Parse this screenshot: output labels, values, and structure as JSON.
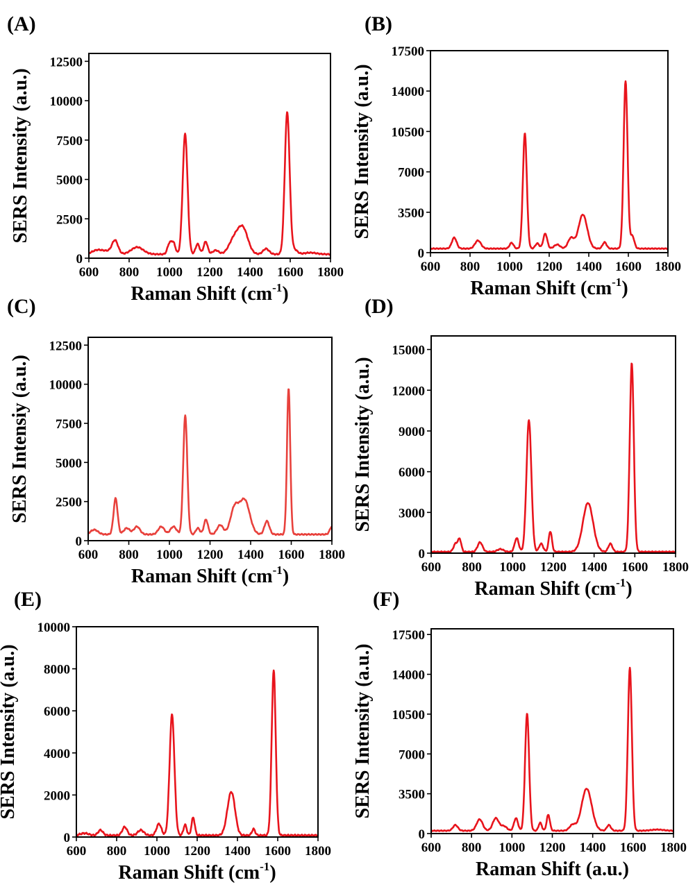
{
  "chart_data": [
    {
      "type": "line",
      "panel_label": "(A)",
      "xlabel": "Raman Shift",
      "xlabel_unit": "cm",
      "xlabel_unit_sup": "-1",
      "ylabel": "SERS Intensity (a.u.)",
      "xlim": [
        600,
        1800
      ],
      "ylim": [
        0,
        13000
      ],
      "xticks": [
        "600",
        "800",
        "1000",
        "1200",
        "1400",
        "1600",
        "1800"
      ],
      "yticks": [
        "0",
        "2500",
        "5000",
        "7500",
        "10000",
        "12500"
      ],
      "series": [
        {
          "color": "#e8141c",
          "baseline": 250,
          "peaks": [
            [
              640,
              250,
              25
            ],
            [
              690,
              180,
              25
            ],
            [
              730,
              850,
              15
            ],
            [
              840,
              450,
              30
            ],
            [
              1000,
              650,
              10
            ],
            [
              1020,
              700,
              10
            ],
            [
              1078,
              7650,
              12
            ],
            [
              1140,
              650,
              10
            ],
            [
              1180,
              800,
              10
            ],
            [
              1230,
              250,
              15
            ],
            [
              1320,
              900,
              25
            ],
            [
              1365,
              1600,
              25
            ],
            [
              1480,
              350,
              15
            ],
            [
              1585,
              9000,
              12
            ],
            [
              1620,
              300,
              15
            ],
            [
              1700,
              100,
              30
            ]
          ]
        }
      ]
    },
    {
      "type": "line",
      "panel_label": "(B)",
      "xlabel": "Raman Shift",
      "xlabel_unit": "cm",
      "xlabel_unit_sup": "-1",
      "ylabel": "SERS Intensity (a.u.)",
      "xlim": [
        600,
        1800
      ],
      "ylim": [
        0,
        17500
      ],
      "xticks": [
        "600",
        "800",
        "1000",
        "1200",
        "1400",
        "1600",
        "1800"
      ],
      "yticks": [
        "0",
        "3500",
        "7000",
        "10500",
        "14000",
        "17500"
      ],
      "series": [
        {
          "color": "#e8141c",
          "baseline": 350,
          "peaks": [
            [
              720,
              950,
              12
            ],
            [
              840,
              700,
              15
            ],
            [
              1010,
              500,
              10
            ],
            [
              1077,
              10000,
              10
            ],
            [
              1140,
              450,
              10
            ],
            [
              1180,
              1300,
              10
            ],
            [
              1240,
              350,
              15
            ],
            [
              1310,
              900,
              15
            ],
            [
              1370,
              2950,
              22
            ],
            [
              1480,
              550,
              10
            ],
            [
              1586,
              14500,
              10
            ],
            [
              1620,
              1100,
              10
            ]
          ]
        }
      ]
    },
    {
      "type": "line",
      "panel_label": "(C)",
      "xlabel": "Raman Shift",
      "xlabel_unit": "cm",
      "xlabel_unit_sup": "-1",
      "ylabel": "SERS Intensiy (a.u.)",
      "xlim": [
        600,
        1800
      ],
      "ylim": [
        0,
        13000
      ],
      "xticks": [
        "600",
        "800",
        "1000",
        "1200",
        "1400",
        "1600",
        "1800"
      ],
      "yticks": [
        "0",
        "2500",
        "5000",
        "7500",
        "10000",
        "12500"
      ],
      "series": [
        {
          "color": "#e8413c",
          "baseline": 400,
          "peaks": [
            [
              630,
              300,
              18
            ],
            [
              735,
              2300,
              10
            ],
            [
              790,
              400,
              15
            ],
            [
              840,
              500,
              15
            ],
            [
              960,
              500,
              15
            ],
            [
              1020,
              500,
              15
            ],
            [
              1078,
              7600,
              10
            ],
            [
              1140,
              400,
              10
            ],
            [
              1180,
              950,
              10
            ],
            [
              1250,
              600,
              15
            ],
            [
              1320,
              1600,
              20
            ],
            [
              1370,
              2200,
              25
            ],
            [
              1480,
              850,
              12
            ],
            [
              1587,
              9350,
              8
            ],
            [
              1800,
              500,
              10
            ]
          ]
        }
      ]
    },
    {
      "type": "line",
      "panel_label": "(D)",
      "xlabel": "Raman Shift",
      "xlabel_unit": "cm",
      "xlabel_unit_sup": "-1",
      "ylabel": "SERS Intensity (a.u.)",
      "xlim": [
        600,
        1800
      ],
      "ylim": [
        0,
        16000
      ],
      "xticks": [
        "600",
        "800",
        "1000",
        "1200",
        "1400",
        "1600",
        "1800"
      ],
      "yticks": [
        "0",
        "3000",
        "6000",
        "9000",
        "12000",
        "15000"
      ],
      "series": [
        {
          "color": "#e8141c",
          "baseline": 100,
          "peaks": [
            [
              720,
              600,
              10
            ],
            [
              740,
              900,
              8
            ],
            [
              840,
              700,
              12
            ],
            [
              940,
              200,
              15
            ],
            [
              1020,
              1000,
              10
            ],
            [
              1080,
              9700,
              12
            ],
            [
              1140,
              600,
              10
            ],
            [
              1185,
              1500,
              8
            ],
            [
              1370,
              3600,
              25
            ],
            [
              1480,
              600,
              10
            ],
            [
              1585,
              13900,
              10
            ]
          ]
        }
      ]
    },
    {
      "type": "line",
      "panel_label": "(E)",
      "xlabel": "Raman Shift",
      "xlabel_unit": "cm",
      "xlabel_unit_sup": "-1",
      "ylabel": "SERS Intensity (a.u.)",
      "xlim": [
        600,
        1800
      ],
      "ylim": [
        0,
        10000
      ],
      "xticks": [
        "600",
        "800",
        "1000",
        "1200",
        "1400",
        "1600",
        "1800"
      ],
      "yticks": [
        "0",
        "2000",
        "4000",
        "6000",
        "8000",
        "10000"
      ],
      "series": [
        {
          "color": "#e8141c",
          "baseline": 80,
          "peaks": [
            [
              640,
              100,
              20
            ],
            [
              720,
              250,
              12
            ],
            [
              840,
              400,
              12
            ],
            [
              920,
              250,
              15
            ],
            [
              1010,
              550,
              12
            ],
            [
              1075,
              5750,
              12
            ],
            [
              1140,
              500,
              8
            ],
            [
              1180,
              850,
              8
            ],
            [
              1365,
              1650,
              18
            ],
            [
              1380,
              600,
              15
            ],
            [
              1480,
              300,
              8
            ],
            [
              1580,
              7850,
              10
            ]
          ]
        }
      ]
    },
    {
      "type": "line",
      "panel_label": "(F)",
      "xlabel": "Raman Shift (a.u.)",
      "ylabel": "SERS Intensity (a.u.)",
      "xlim": [
        600,
        1800
      ],
      "ylim": [
        0,
        18000
      ],
      "xticks": [
        "600",
        "800",
        "1000",
        "1200",
        "1400",
        "1600",
        "1800"
      ],
      "yticks": [
        "0",
        "3500",
        "7000",
        "10500",
        "14000",
        "17500"
      ],
      "series": [
        {
          "color": "#e8141c",
          "baseline": 250,
          "peaks": [
            [
              720,
              500,
              12
            ],
            [
              840,
              1000,
              15
            ],
            [
              920,
              1100,
              15
            ],
            [
              960,
              400,
              15
            ],
            [
              1020,
              1100,
              10
            ],
            [
              1075,
              10300,
              10
            ],
            [
              1140,
              700,
              8
            ],
            [
              1180,
              1400,
              8
            ],
            [
              1300,
              500,
              15
            ],
            [
              1370,
              3700,
              25
            ],
            [
              1480,
              500,
              10
            ],
            [
              1584,
              14300,
              10
            ],
            [
              1720,
              100,
              30
            ]
          ]
        }
      ]
    }
  ]
}
